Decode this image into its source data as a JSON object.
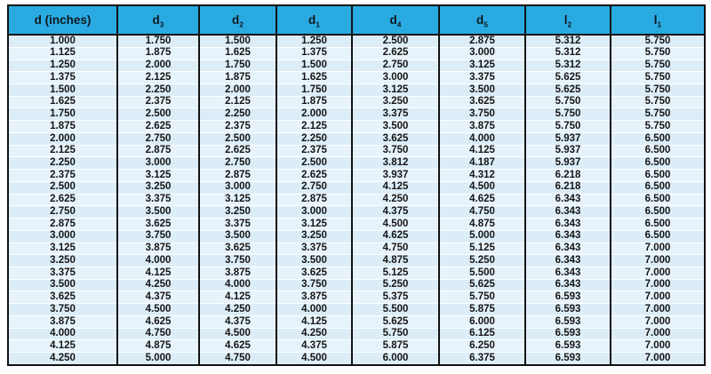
{
  "colors": {
    "header_bg": "#29ABE2",
    "row_bg": "#DCEDF8",
    "row_alt_bg": "#E6F3FB",
    "table_border": "#121212",
    "row_divider": "#FFFFFF",
    "text": "#161616"
  },
  "chart_data": {
    "type": "table",
    "columns": [
      {
        "key": "d",
        "text": "d (inches)",
        "sub": ""
      },
      {
        "key": "d3",
        "text": "d",
        "sub": "3"
      },
      {
        "key": "d2",
        "text": "d",
        "sub": "2"
      },
      {
        "key": "d1",
        "text": "d",
        "sub": "1"
      },
      {
        "key": "d4",
        "text": "d",
        "sub": "4"
      },
      {
        "key": "d5",
        "text": "d",
        "sub": "5"
      },
      {
        "key": "l2",
        "text": "l",
        "sub": "2"
      },
      {
        "key": "l1",
        "text": "l",
        "sub": "1"
      }
    ],
    "rows": [
      [
        "1.000",
        "1.750",
        "1.500",
        "1.250",
        "2.500",
        "2.875",
        "5.312",
        "5.750"
      ],
      [
        "1.125",
        "1.875",
        "1.625",
        "1.375",
        "2.625",
        "3.000",
        "5.312",
        "5.750"
      ],
      [
        "1.250",
        "2.000",
        "1.750",
        "1.500",
        "2.750",
        "3.125",
        "5.312",
        "5.750"
      ],
      [
        "1.375",
        "2.125",
        "1.875",
        "1.625",
        "3.000",
        "3.375",
        "5.625",
        "5.750"
      ],
      [
        "1.500",
        "2.250",
        "2.000",
        "1.750",
        "3.125",
        "3.500",
        "5.625",
        "5.750"
      ],
      [
        "1.625",
        "2.375",
        "2.125",
        "1.875",
        "3.250",
        "3.625",
        "5.750",
        "5.750"
      ],
      [
        "1.750",
        "2.500",
        "2.250",
        "2.000",
        "3.375",
        "3.750",
        "5.750",
        "5.750"
      ],
      [
        "1.875",
        "2.625",
        "2.375",
        "2.125",
        "3.500",
        "3.875",
        "5.750",
        "5.750"
      ],
      [
        "2.000",
        "2.750",
        "2.500",
        "2.250",
        "3.625",
        "4.000",
        "5.937",
        "6.500"
      ],
      [
        "2.125",
        "2.875",
        "2.625",
        "2.375",
        "3.750",
        "4.125",
        "5.937",
        "6.500"
      ],
      [
        "2.250",
        "3.000",
        "2.750",
        "2.500",
        "3.812",
        "4.187",
        "5.937",
        "6.500"
      ],
      [
        "2.375",
        "3.125",
        "2.875",
        "2.625",
        "3.937",
        "4.312",
        "6.218",
        "6.500"
      ],
      [
        "2.500",
        "3.250",
        "3.000",
        "2.750",
        "4.125",
        "4.500",
        "6.218",
        "6.500"
      ],
      [
        "2.625",
        "3.375",
        "3.125",
        "2.875",
        "4.250",
        "4.625",
        "6.343",
        "6.500"
      ],
      [
        "2.750",
        "3.500",
        "3.250",
        "3.000",
        "4.375",
        "4.750",
        "6.343",
        "6.500"
      ],
      [
        "2.875",
        "3.625",
        "3.375",
        "3.125",
        "4.500",
        "4.875",
        "6.343",
        "6.500"
      ],
      [
        "3.000",
        "3.750",
        "3.500",
        "3.250",
        "4.625",
        "5.000",
        "6.343",
        "6.500"
      ],
      [
        "3.125",
        "3.875",
        "3.625",
        "3.375",
        "4.750",
        "5.125",
        "6.343",
        "7.000"
      ],
      [
        "3.250",
        "4.000",
        "3.750",
        "3.500",
        "4.875",
        "5.250",
        "6.343",
        "7.000"
      ],
      [
        "3.375",
        "4.125",
        "3.875",
        "3.625",
        "5.125",
        "5.500",
        "6.343",
        "7.000"
      ],
      [
        "3.500",
        "4.250",
        "4.000",
        "3.750",
        "5.250",
        "5.625",
        "6.343",
        "7.000"
      ],
      [
        "3.625",
        "4.375",
        "4.125",
        "3.875",
        "5.375",
        "5.750",
        "6.593",
        "7.000"
      ],
      [
        "3.750",
        "4.500",
        "4.250",
        "4.000",
        "5.500",
        "5.875",
        "6.593",
        "7.000"
      ],
      [
        "3.875",
        "4.625",
        "4.375",
        "4.125",
        "5.625",
        "6.000",
        "6.593",
        "7.000"
      ],
      [
        "4.000",
        "4.750",
        "4.500",
        "4.250",
        "5.750",
        "6.125",
        "6.593",
        "7.000"
      ],
      [
        "4.125",
        "4.875",
        "4.625",
        "4.375",
        "5.875",
        "6.250",
        "6.593",
        "7.000"
      ],
      [
        "4.250",
        "5.000",
        "4.750",
        "4.500",
        "6.000",
        "6.375",
        "6.593",
        "7.000"
      ]
    ]
  }
}
